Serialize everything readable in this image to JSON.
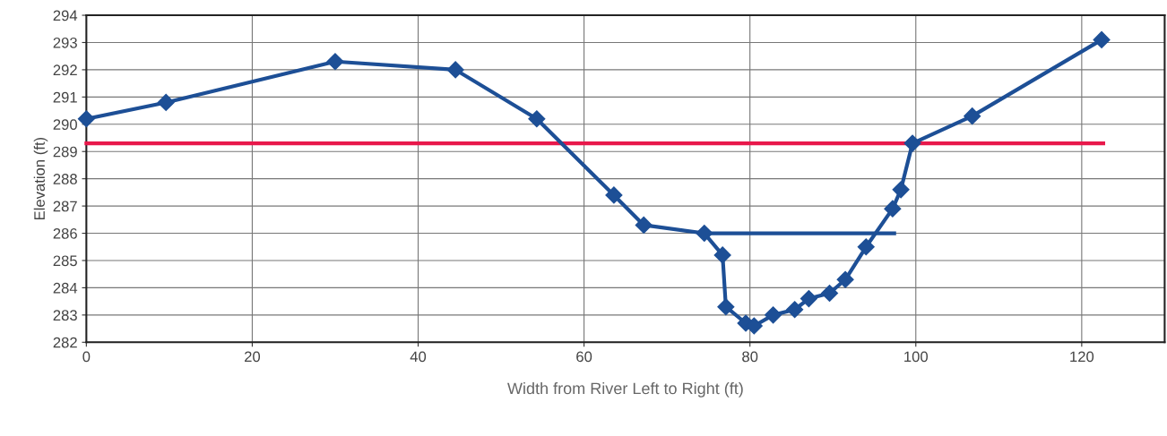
{
  "chart_data": {
    "type": "line",
    "xlabel": "Width from River Left to Right (ft)",
    "ylabel": "Elevation (ft)",
    "xlim": [
      0,
      130
    ],
    "xticks": [
      0,
      20,
      40,
      60,
      80,
      100,
      120
    ],
    "ylim": [
      282,
      294
    ],
    "yticks": [
      282,
      283,
      284,
      285,
      286,
      287,
      288,
      289,
      290,
      291,
      292,
      293,
      294
    ],
    "grid": true,
    "legend": false,
    "series": [
      {
        "color": "#e8194b",
        "marker": "none",
        "x": [
          0,
          122.6
        ],
        "values": [
          289.3,
          289.3
        ]
      },
      {
        "color": "#1d4f96",
        "marker": "none",
        "x": [
          75.2,
          97.4
        ],
        "values": [
          286.0,
          286.0
        ]
      },
      {
        "color": "#1d4f96",
        "marker": "diamond",
        "x": [
          0,
          9.6,
          30.0,
          44.5,
          54.3,
          63.6,
          67.2,
          74.5,
          76.7,
          77.1,
          79.5,
          80.5,
          82.8,
          85.4,
          87.1,
          89.6,
          91.5,
          94.0,
          97.2,
          98.2,
          99.6,
          106.8,
          122.4
        ],
        "values": [
          290.2,
          290.8,
          292.3,
          292.0,
          290.2,
          287.4,
          286.3,
          286.0,
          285.2,
          283.3,
          282.7,
          282.6,
          283.0,
          283.2,
          283.6,
          283.8,
          284.3,
          285.5,
          286.9,
          287.6,
          289.3,
          290.3,
          293.1
        ]
      }
    ]
  }
}
